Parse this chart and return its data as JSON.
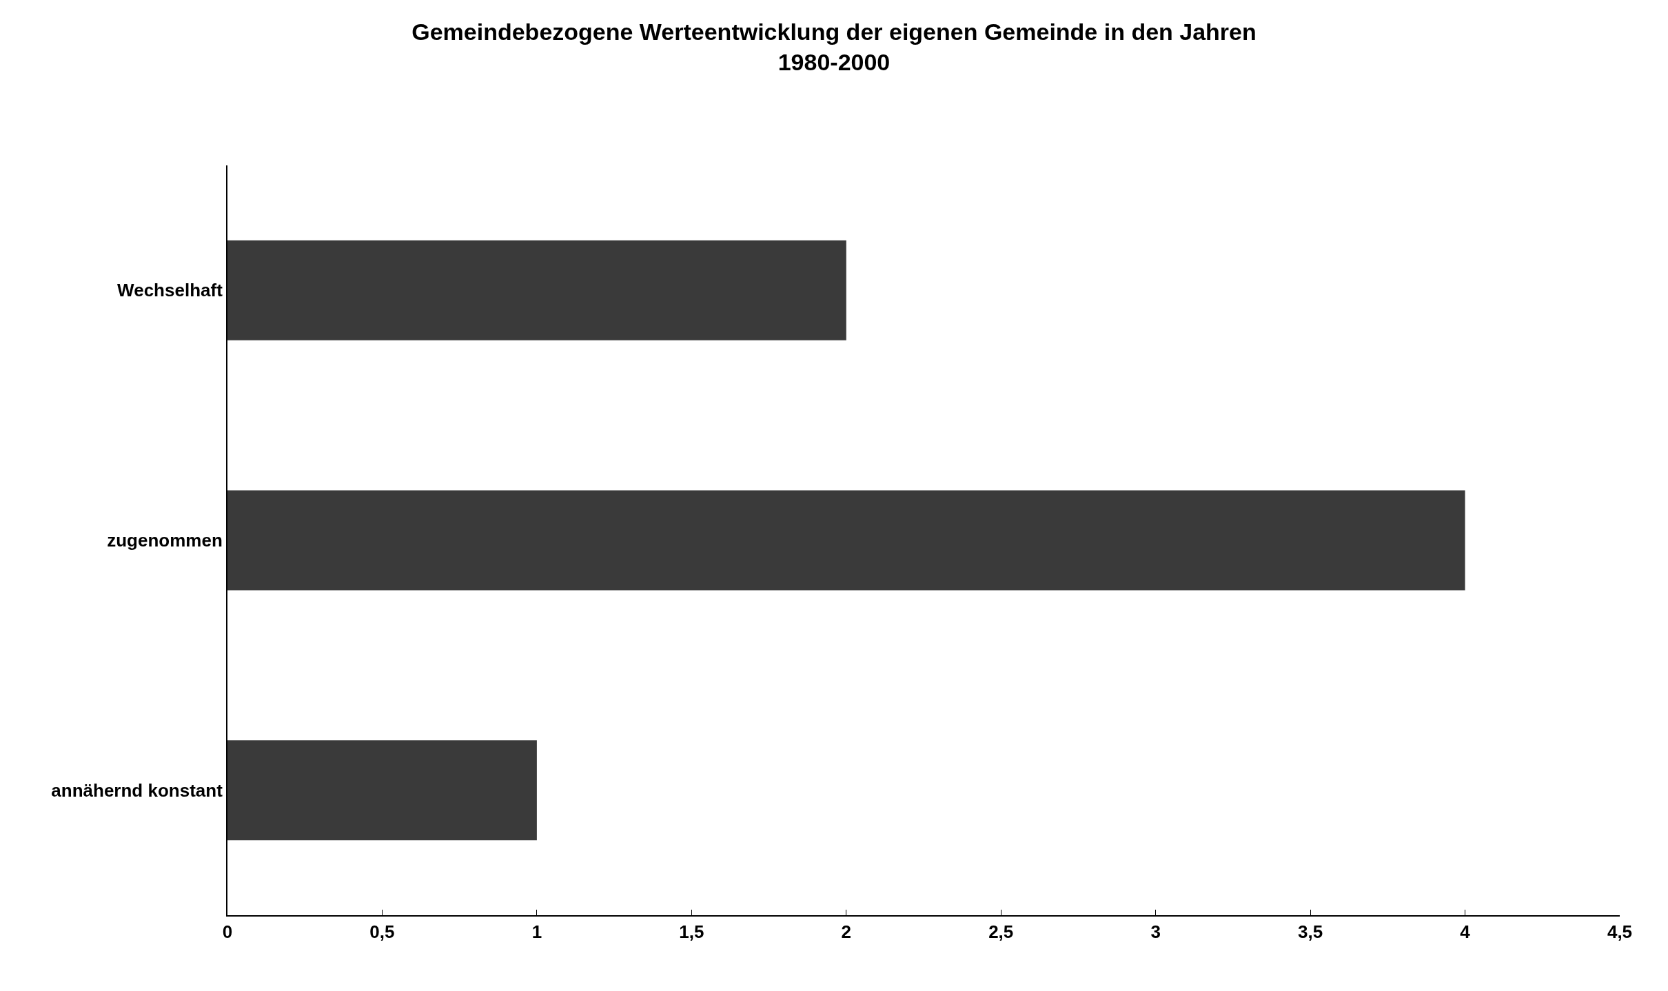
{
  "chart_data": {
    "type": "bar",
    "orientation": "horizontal",
    "title": "Gemeindebezogene Werteentwicklung der eigenen Gemeinde in den Jahren 1980-2000",
    "categories": [
      "Wechselhaft",
      "zugenommen",
      "annähernd konstant"
    ],
    "values": [
      2,
      4,
      1
    ],
    "color": "#3a3a3a",
    "xlim": [
      0,
      4.5
    ],
    "xticks": [
      0,
      {
        "value": 0.5,
        "label": "0,5"
      },
      1,
      {
        "value": 1.5,
        "label": "1,5"
      },
      2,
      {
        "value": 2.5,
        "label": "2,5"
      },
      3,
      {
        "value": 3.5,
        "label": "3,5"
      },
      4,
      {
        "value": 4.5,
        "label": "4,5"
      }
    ]
  }
}
